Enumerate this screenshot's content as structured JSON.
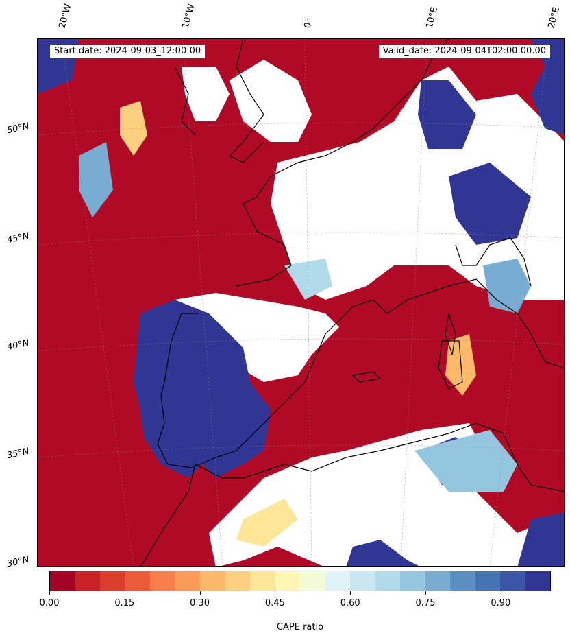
{
  "map": {
    "start_date": "Start date: 2024-09-03_12:00:00",
    "valid_date": "Valid_date: 2024-09-04T02:00:00.00",
    "lon_labels": [
      "20°W",
      "10°W",
      "0°",
      "10°E",
      "20°E"
    ],
    "lat_labels": [
      "50°N",
      "45°N",
      "40°N",
      "35°N",
      "30°N"
    ],
    "field": "CAPE ratio",
    "extent": {
      "lon": [
        -21,
        21
      ],
      "lat": [
        30,
        55
      ]
    }
  },
  "colorbar": {
    "label": "CAPE ratio",
    "ticks": [
      "0.00",
      "0.15",
      "0.30",
      "0.45",
      "0.60",
      "0.75",
      "0.90"
    ],
    "range": [
      0.0,
      1.0
    ],
    "colors": [
      "#a50026",
      "#c82227",
      "#dd3d2d",
      "#ec5c3b",
      "#f67f4b",
      "#fa9c58",
      "#fdb96a",
      "#fdd081",
      "#fee699",
      "#fef7b3",
      "#f2fad6",
      "#e0f3f8",
      "#c9e7f1",
      "#b0d9e9",
      "#95c6df",
      "#79acd1",
      "#5b8fc1",
      "#4574b3",
      "#3b56a4",
      "#313695"
    ]
  }
}
